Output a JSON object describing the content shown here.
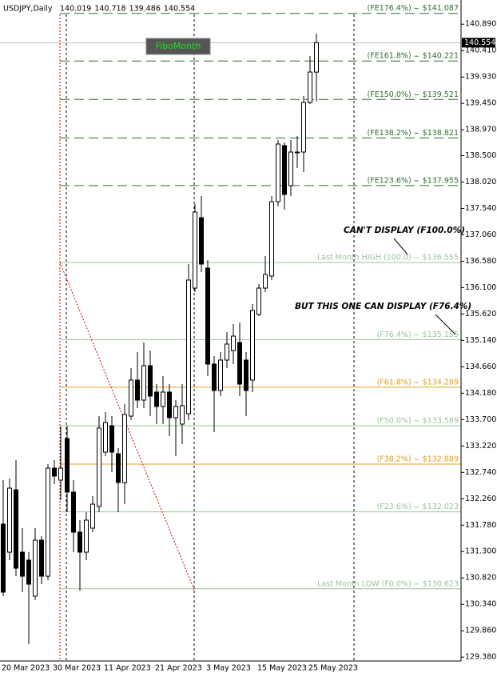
{
  "chart_data": {
    "type": "candlestick",
    "title": "USDJPY,Daily",
    "button": "FiboMonth",
    "categories": [
      "20 Mar 2023",
      null,
      null,
      null,
      null,
      null,
      null,
      null,
      "30 Mar 2023",
      null,
      null,
      null,
      null,
      null,
      null,
      null,
      "11 Apr 2023",
      null,
      null,
      null,
      null,
      null,
      null,
      null,
      "21 Apr 2023",
      null,
      null,
      null,
      null,
      null,
      null,
      null,
      "3 May 2023",
      null,
      null,
      null,
      null,
      null,
      null,
      null,
      "15 May 2023",
      null,
      null,
      null,
      null,
      null,
      null,
      null,
      "25 May 2023",
      null
    ],
    "ohlc": {
      "open": [
        131.799,
        131.289,
        132.424,
        131.289,
        131.144,
        130.489,
        131.507,
        130.852,
        132.817,
        132.599,
        133.356,
        132.381,
        131.653,
        131.289,
        131.726,
        132.119,
        133.108,
        133.588,
        133.079,
        132.555,
        133.763,
        134.418,
        134.054,
        134.68,
        134.2,
        133.938,
        134.2,
        133.734,
        133.618,
        133.807,
        136.091,
        137.372,
        136.455,
        134.709,
        134.229,
        134.782,
        134.956,
        135.102,
        134.782,
        134.418,
        135.611,
        136.091,
        136.31,
        137.663,
        138.682,
        137.954,
        138.565,
        138.565,
        139.467,
        140.019
      ],
      "high": [
        132.599,
        132.628,
        132.963,
        131.726,
        131.289,
        131.726,
        131.58,
        132.89,
        132.963,
        133.574,
        133.588,
        132.599,
        131.871,
        132.017,
        132.308,
        133.763,
        133.836,
        133.763,
        133.181,
        133.981,
        134.636,
        134.927,
        135.102,
        134.956,
        134.345,
        134.491,
        134.345,
        134.054,
        134.345,
        136.528,
        137.619,
        137.765,
        136.601,
        134.854,
        134.927,
        135.291,
        135.437,
        135.466,
        134.927,
        135.8,
        136.164,
        136.673,
        137.765,
        138.783,
        138.74,
        138.783,
        138.856,
        139.584,
        140.311,
        140.718
      ],
      "low": [
        130.489,
        131.144,
        130.852,
        130.562,
        129.616,
        130.416,
        130.707,
        130.78,
        132.526,
        132.235,
        132.017,
        131.289,
        130.591,
        131.144,
        131.653,
        132.017,
        133.035,
        132.744,
        132.017,
        132.162,
        133.69,
        133.908,
        133.908,
        133.763,
        133.618,
        133.618,
        133.399,
        133.035,
        133.254,
        133.69,
        136.019,
        136.383,
        134.491,
        133.472,
        134.127,
        134.636,
        134.709,
        134.127,
        133.763,
        134.2,
        135.582,
        136.019,
        136.237,
        137.576,
        137.517,
        137.765,
        138.274,
        138.201,
        139.438,
        139.486
      ],
      "close": [
        130.562,
        132.453,
        130.998,
        130.852,
        130.707,
        131.507,
        130.852,
        132.817,
        132.672,
        132.817,
        132.381,
        131.653,
        131.289,
        131.871,
        132.162,
        133.545,
        133.647,
        133.108,
        132.555,
        133.792,
        134.418,
        134.054,
        134.68,
        134.127,
        133.938,
        134.2,
        133.734,
        133.938,
        133.952,
        136.237,
        137.474,
        136.528,
        134.709,
        134.229,
        134.782,
        135.073,
        135.218,
        134.345,
        134.229,
        135.684,
        136.091,
        136.339,
        137.663,
        138.711,
        137.794,
        138.565,
        138.551,
        139.467,
        140.02,
        140.554
      ]
    },
    "bull_color": "#ffffff",
    "bear_color": "#000000",
    "ylim": [
      129.31,
      141.33
    ],
    "yticks": [
      {
        "value": 140.89,
        "label": "140.890"
      },
      {
        "value": 140.41,
        "label": "140.410"
      },
      {
        "value": 139.93,
        "label": "139.930"
      },
      {
        "value": 139.45,
        "label": "139.450"
      },
      {
        "value": 138.97,
        "label": "138.970"
      },
      {
        "value": 138.5,
        "label": "138.500"
      },
      {
        "value": 138.02,
        "label": "138.020"
      },
      {
        "value": 137.54,
        "label": "137.540"
      },
      {
        "value": 137.06,
        "label": "137.060"
      },
      {
        "value": 136.58,
        "label": "136.580"
      },
      {
        "value": 136.1,
        "label": "136.100"
      },
      {
        "value": 135.62,
        "label": "135.620"
      },
      {
        "value": 135.14,
        "label": "135.140"
      },
      {
        "value": 134.66,
        "label": "134.660"
      },
      {
        "value": 134.18,
        "label": "134.180"
      },
      {
        "value": 133.7,
        "label": "133.700"
      },
      {
        "value": 133.22,
        "label": "133.220"
      },
      {
        "value": 132.74,
        "label": "132.740"
      },
      {
        "value": 132.26,
        "label": "132.260"
      },
      {
        "value": 131.78,
        "label": "131.780"
      },
      {
        "value": 131.3,
        "label": "131.300"
      },
      {
        "value": 130.82,
        "label": "130.820"
      },
      {
        "value": 130.34,
        "label": "130.340"
      },
      {
        "value": 129.86,
        "label": "129.860"
      },
      {
        "value": 129.38,
        "label": "129.380"
      }
    ],
    "levels": [
      {
        "name": "(FE176.4%)",
        "value": 141.087,
        "value_label": "$141.087",
        "color": "#2f6e2f",
        "dashed": true
      },
      {
        "name": "(FE161.8%)",
        "value": 140.221,
        "value_label": "$140.221",
        "color": "#2f6e2f",
        "dashed": true
      },
      {
        "name": "(FE150.0%)",
        "value": 139.521,
        "value_label": "$139.521",
        "color": "#2f6e2f",
        "dashed": true
      },
      {
        "name": "(FE138.2%)",
        "value": 138.821,
        "value_label": "$138.821",
        "color": "#2f6e2f",
        "dashed": true
      },
      {
        "name": "(FE123.6%)",
        "value": 137.955,
        "value_label": "$137.955",
        "color": "#2f6e2f",
        "dashed": true
      },
      {
        "name": "Last Month HIGH (100.0)",
        "value": 136.555,
        "value_label": "$136.555",
        "color": "#9cc49c",
        "dashed": false
      },
      {
        "name": "(F76.4%)",
        "value": 135.155,
        "value_label": "$135.155",
        "color": "#9cc49c",
        "dashed": false
      },
      {
        "name": "(F61.8%)",
        "value": 134.289,
        "value_label": "$134.289",
        "color": "#e0a020",
        "dashed": false
      },
      {
        "name": "(F50.0%)",
        "value": 133.589,
        "value_label": "$133.589",
        "color": "#9cc49c",
        "dashed": false
      },
      {
        "name": "(F38.2%)",
        "value": 132.889,
        "value_label": "$132.889",
        "color": "#e0a020",
        "dashed": false
      },
      {
        "name": "(F23.6%)",
        "value": 132.023,
        "value_label": "$132.023",
        "color": "#9cc49c",
        "dashed": false
      },
      {
        "name": "Last Month LOW (F0.0%)",
        "value": 130.623,
        "value_label": "$130.623",
        "color": "#9cc49c",
        "dashed": false
      }
    ],
    "annotations": [
      "CAN'T DISPLAY  (F100.0%)",
      "BUT  THIS ONE CAN DISPLAY (F76.4%)"
    ]
  }
}
